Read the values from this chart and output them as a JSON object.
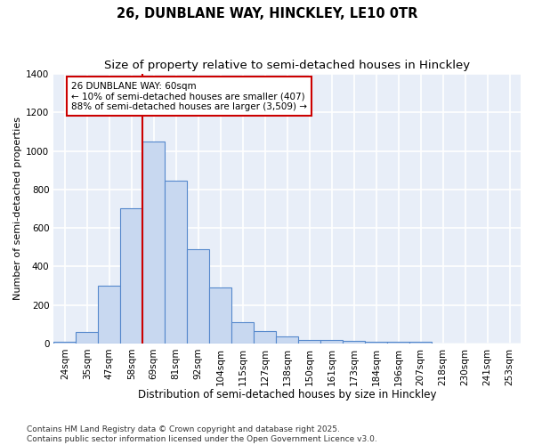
{
  "title": "26, DUNBLANE WAY, HINCKLEY, LE10 0TR",
  "subtitle": "Size of property relative to semi-detached houses in Hinckley",
  "xlabel": "Distribution of semi-detached houses by size in Hinckley",
  "ylabel": "Number of semi-detached properties",
  "bar_labels": [
    "24sqm",
    "35sqm",
    "47sqm",
    "58sqm",
    "69sqm",
    "81sqm",
    "92sqm",
    "104sqm",
    "115sqm",
    "127sqm",
    "138sqm",
    "150sqm",
    "161sqm",
    "173sqm",
    "184sqm",
    "196sqm",
    "207sqm",
    "218sqm",
    "230sqm",
    "241sqm",
    "253sqm"
  ],
  "bar_values": [
    10,
    60,
    300,
    700,
    1050,
    845,
    490,
    290,
    110,
    62,
    35,
    18,
    18,
    14,
    10,
    8,
    8,
    0,
    0,
    0,
    0
  ],
  "bar_color": "#c8d8f0",
  "bar_edgecolor": "#5588cc",
  "bar_linewidth": 0.8,
  "vline_x": 3.5,
  "vline_color": "#cc0000",
  "vline_linewidth": 1.5,
  "annotation_text": "26 DUNBLANE WAY: 60sqm\n← 10% of semi-detached houses are smaller (407)\n88% of semi-detached houses are larger (3,509) →",
  "annotation_box_color": "#ffffff",
  "annotation_box_edgecolor": "#cc0000",
  "ylim": [
    0,
    1400
  ],
  "yticks": [
    0,
    200,
    400,
    600,
    800,
    1000,
    1200,
    1400
  ],
  "background_color": "#e8eef8",
  "grid_color": "#ffffff",
  "footer": "Contains HM Land Registry data © Crown copyright and database right 2025.\nContains public sector information licensed under the Open Government Licence v3.0.",
  "title_fontsize": 10.5,
  "subtitle_fontsize": 9.5,
  "xlabel_fontsize": 8.5,
  "ylabel_fontsize": 8,
  "tick_fontsize": 7.5,
  "annotation_fontsize": 7.5,
  "footer_fontsize": 6.5
}
